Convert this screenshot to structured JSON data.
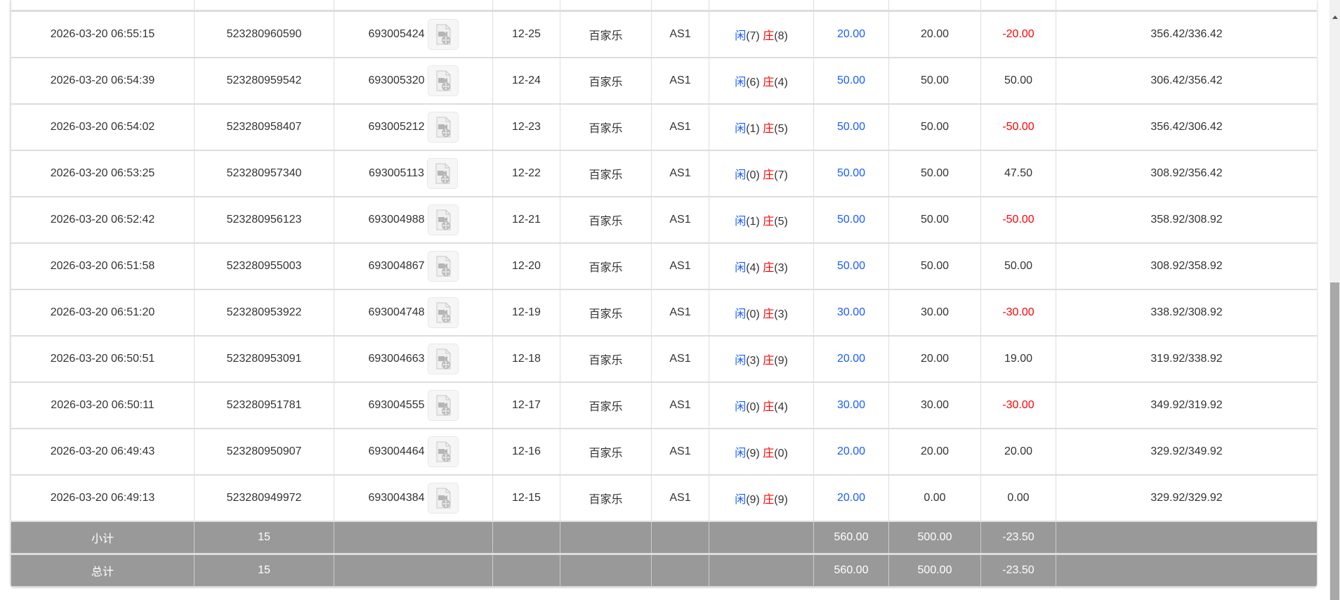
{
  "rows": [
    {
      "time": "2026-03-20 06:55:15",
      "order": "523280960590",
      "round": "693005424",
      "shoe": "12-25",
      "game": "百家乐",
      "table": "AS1",
      "player": "闲",
      "player_n": "(7)",
      "banker": "庄",
      "banker_n": "(8)",
      "bet": "20.00",
      "valid": "20.00",
      "win": "-20.00",
      "balance": "356.42/336.42"
    },
    {
      "time": "2026-03-20 06:54:39",
      "order": "523280959542",
      "round": "693005320",
      "shoe": "12-24",
      "game": "百家乐",
      "table": "AS1",
      "player": "闲",
      "player_n": "(6)",
      "banker": "庄",
      "banker_n": "(4)",
      "bet": "50.00",
      "valid": "50.00",
      "win": "50.00",
      "balance": "306.42/356.42"
    },
    {
      "time": "2026-03-20 06:54:02",
      "order": "523280958407",
      "round": "693005212",
      "shoe": "12-23",
      "game": "百家乐",
      "table": "AS1",
      "player": "闲",
      "player_n": "(1)",
      "banker": "庄",
      "banker_n": "(5)",
      "bet": "50.00",
      "valid": "50.00",
      "win": "-50.00",
      "balance": "356.42/306.42"
    },
    {
      "time": "2026-03-20 06:53:25",
      "order": "523280957340",
      "round": "693005113",
      "shoe": "12-22",
      "game": "百家乐",
      "table": "AS1",
      "player": "闲",
      "player_n": "(0)",
      "banker": "庄",
      "banker_n": "(7)",
      "bet": "50.00",
      "valid": "50.00",
      "win": "47.50",
      "balance": "308.92/356.42"
    },
    {
      "time": "2026-03-20 06:52:42",
      "order": "523280956123",
      "round": "693004988",
      "shoe": "12-21",
      "game": "百家乐",
      "table": "AS1",
      "player": "闲",
      "player_n": "(1)",
      "banker": "庄",
      "banker_n": "(5)",
      "bet": "50.00",
      "valid": "50.00",
      "win": "-50.00",
      "balance": "358.92/308.92"
    },
    {
      "time": "2026-03-20 06:51:58",
      "order": "523280955003",
      "round": "693004867",
      "shoe": "12-20",
      "game": "百家乐",
      "table": "AS1",
      "player": "闲",
      "player_n": "(4)",
      "banker": "庄",
      "banker_n": "(3)",
      "bet": "50.00",
      "valid": "50.00",
      "win": "50.00",
      "balance": "308.92/358.92"
    },
    {
      "time": "2026-03-20 06:51:20",
      "order": "523280953922",
      "round": "693004748",
      "shoe": "12-19",
      "game": "百家乐",
      "table": "AS1",
      "player": "闲",
      "player_n": "(0)",
      "banker": "庄",
      "banker_n": "(3)",
      "bet": "30.00",
      "valid": "30.00",
      "win": "-30.00",
      "balance": "338.92/308.92"
    },
    {
      "time": "2026-03-20 06:50:51",
      "order": "523280953091",
      "round": "693004663",
      "shoe": "12-18",
      "game": "百家乐",
      "table": "AS1",
      "player": "闲",
      "player_n": "(3)",
      "banker": "庄",
      "banker_n": "(9)",
      "bet": "20.00",
      "valid": "20.00",
      "win": "19.00",
      "balance": "319.92/338.92"
    },
    {
      "time": "2026-03-20 06:50:11",
      "order": "523280951781",
      "round": "693004555",
      "shoe": "12-17",
      "game": "百家乐",
      "table": "AS1",
      "player": "闲",
      "player_n": "(0)",
      "banker": "庄",
      "banker_n": "(4)",
      "bet": "30.00",
      "valid": "30.00",
      "win": "-30.00",
      "balance": "349.92/319.92"
    },
    {
      "time": "2026-03-20 06:49:43",
      "order": "523280950907",
      "round": "693004464",
      "shoe": "12-16",
      "game": "百家乐",
      "table": "AS1",
      "player": "闲",
      "player_n": "(9)",
      "banker": "庄",
      "banker_n": "(0)",
      "bet": "20.00",
      "valid": "20.00",
      "win": "20.00",
      "balance": "329.92/349.92"
    },
    {
      "time": "2026-03-20 06:49:13",
      "order": "523280949972",
      "round": "693004384",
      "shoe": "12-15",
      "game": "百家乐",
      "table": "AS1",
      "player": "闲",
      "player_n": "(9)",
      "banker": "庄",
      "banker_n": "(9)",
      "bet": "20.00",
      "valid": "0.00",
      "win": "0.00",
      "balance": "329.92/329.92"
    }
  ],
  "footer": [
    {
      "label": "小计",
      "count": "15",
      "bet": "560.00",
      "valid": "500.00",
      "win": "-23.50"
    },
    {
      "label": "总计",
      "count": "15",
      "bet": "560.00",
      "valid": "500.00",
      "win": "-23.50"
    }
  ],
  "icons": {
    "replay": "video-file-icon"
  },
  "colors": {
    "player": "#1a5cff",
    "banker": "#ff0000",
    "loss": "#ff0000",
    "footer_bg": "#999999"
  }
}
